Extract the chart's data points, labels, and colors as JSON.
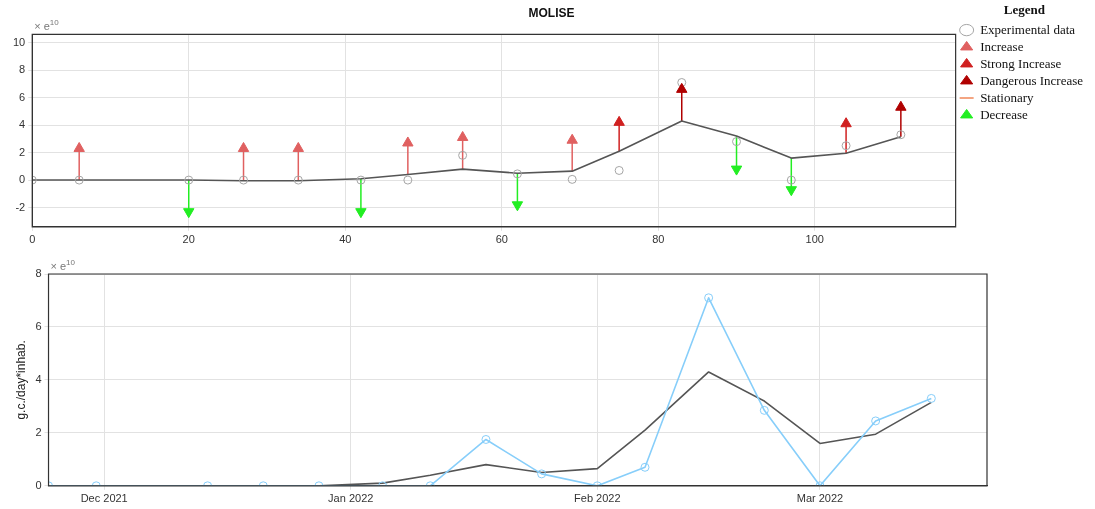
{
  "chart_data": [
    {
      "type": "scatter",
      "title": "MOLISE",
      "legend_title": "Legend",
      "legend": "top right",
      "grid": true,
      "annotations": [
        "× e$^{10}$"
      ],
      "xlim": [
        0,
        118
      ],
      "xticks": [
        0,
        20,
        40,
        60,
        80,
        100
      ],
      "ylim": [
        -3.4,
        10.6
      ],
      "yticks": [
        -2,
        0,
        2,
        4,
        6,
        8,
        10
      ],
      "series": [
        {
          "name": "Experimental data",
          "marker": "circle",
          "color": "#a6a6a6",
          "x": [
            0,
            6,
            20,
            27,
            34,
            42,
            48,
            55,
            62,
            69,
            75,
            83,
            90,
            97,
            104,
            111
          ],
          "values": [
            0,
            0,
            0,
            0,
            0,
            0,
            0,
            1.8,
            0.45,
            0.05,
            0.7,
            7.1,
            2.8,
            0,
            2.5,
            3.3
          ]
        },
        {
          "type": "line",
          "marker": "none",
          "color": "#555555",
          "x": [
            0,
            6,
            20,
            27,
            34,
            42,
            48,
            55,
            62,
            69,
            75,
            83,
            90,
            97,
            104,
            111
          ],
          "values": [
            0,
            0,
            0,
            -0.05,
            -0.05,
            0.1,
            0.4,
            0.8,
            0.5,
            0.65,
            2.1,
            4.3,
            3.2,
            1.6,
            1.95,
            3.15
          ]
        },
        {
          "name": "Increase",
          "marker": "triangle",
          "color": "#e06060",
          "x": [
            6,
            27,
            34,
            48,
            55,
            69
          ],
          "values": [
            2.3,
            2.3,
            2.3,
            2.7,
            3.1,
            2.9
          ],
          "errors": [
            [
              0,
              2.3
            ],
            [
              -0.05,
              2.3
            ],
            [
              -0.05,
              2.3
            ],
            [
              0.4,
              2.7
            ],
            [
              0.8,
              3.1
            ],
            [
              0.65,
              2.9
            ]
          ]
        },
        {
          "name": "Strong Increase",
          "marker": "triangle",
          "color": "#d02020",
          "x": [
            75,
            104
          ],
          "values": [
            4.2,
            4.1
          ],
          "errors": [
            [
              2.1,
              4.2
            ],
            [
              1.95,
              4.1
            ]
          ]
        },
        {
          "name": "Dangerous Increase",
          "marker": "triangle",
          "color": "#b00000",
          "x": [
            83,
            111
          ],
          "values": [
            6.6,
            5.3
          ],
          "errors": [
            [
              4.3,
              6.6
            ],
            [
              3.15,
              5.3
            ]
          ]
        },
        {
          "name": "Stationary",
          "type": "line",
          "marker": "none",
          "color": "#f4a582"
        },
        {
          "name": "Decrease",
          "marker": "triangle",
          "color": "#22ee22",
          "x": [
            20,
            42,
            62,
            90,
            97
          ],
          "values": [
            -2.3,
            -2.3,
            -1.8,
            0.8,
            -0.7
          ],
          "errors": [
            [
              -2.3,
              0
            ],
            [
              -2.3,
              0.1
            ],
            [
              -1.8,
              0.5
            ],
            [
              0.8,
              3.2
            ],
            [
              -0.7,
              1.6
            ]
          ]
        }
      ]
    },
    {
      "type": "line",
      "ylabel": "g.c./day*inhab.",
      "grid": true,
      "legend": false,
      "annotations": [
        "× e$^{10}$"
      ],
      "xlim": [
        "2021-11-24",
        "2022-03-22"
      ],
      "xticks": [
        {
          "value": "2021-12-01",
          "label": "Dec 2021"
        },
        {
          "value": "2022-01-01",
          "label": "Jan 2022"
        },
        {
          "value": "2022-02-01",
          "label": "Feb 2022"
        },
        {
          "value": "2022-03-01",
          "label": "Mar 2022"
        }
      ],
      "ylim": [
        0,
        8
      ],
      "yticks": [
        0,
        2,
        4,
        6,
        8
      ],
      "series": [
        {
          "marker": "circle",
          "color": "#87cefa",
          "x": [
            "2021-11-24",
            "2021-11-30",
            "2021-12-14",
            "2021-12-21",
            "2021-12-28",
            "2022-01-05",
            "2022-01-11",
            "2022-01-18",
            "2022-01-25",
            "2022-02-01",
            "2022-02-07",
            "2022-02-15",
            "2022-02-22",
            "2022-03-01",
            "2022-03-08",
            "2022-03-15"
          ],
          "values": [
            0,
            0,
            0,
            0,
            0,
            0,
            0,
            1.75,
            0.45,
            0,
            0.7,
            7.1,
            2.85,
            0,
            2.45,
            3.3
          ]
        },
        {
          "marker": "none",
          "color": "#555555",
          "x": [
            "2021-11-24",
            "2021-11-30",
            "2021-12-14",
            "2021-12-21",
            "2021-12-28",
            "2022-01-05",
            "2022-01-11",
            "2022-01-18",
            "2022-01-25",
            "2022-02-01",
            "2022-02-07",
            "2022-02-15",
            "2022-02-22",
            "2022-03-01",
            "2022-03-08",
            "2022-03-15"
          ],
          "values": [
            0,
            0,
            0,
            0,
            0,
            0.1,
            0.4,
            0.8,
            0.5,
            0.65,
            2.1,
            4.3,
            3.2,
            1.6,
            1.95,
            3.15
          ]
        }
      ]
    }
  ]
}
